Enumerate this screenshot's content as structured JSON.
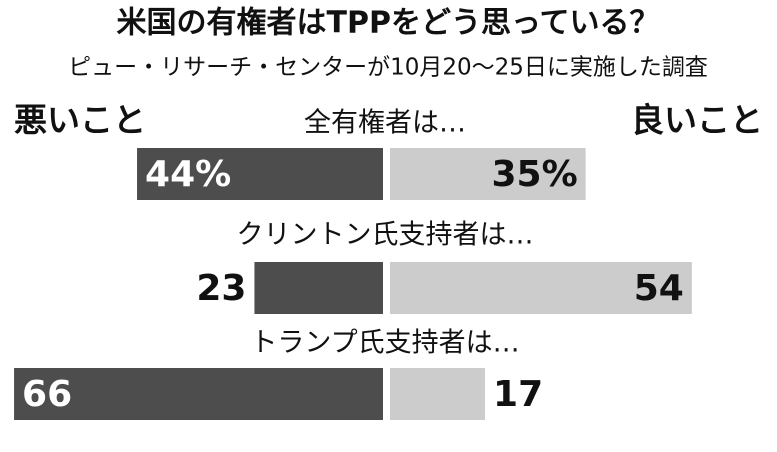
{
  "chart_data": {
    "type": "diverging-bar",
    "title": "米国の有権者はTPPをどう思っている？",
    "subtitle": "ピュー・リサーチ・センターが10月20〜25日に実施した調査",
    "categories": [
      "全有権者は…",
      "クリントン氏支持者は…",
      "トランプ氏支持者は…"
    ],
    "series": [
      {
        "name": "悪いこと",
        "color": "#4d4d4d",
        "values": [
          44,
          23,
          66
        ],
        "value_labels": [
          "44%",
          "23",
          "66"
        ]
      },
      {
        "name": "良いこと",
        "color": "#cccccc",
        "values": [
          35,
          54,
          17
        ],
        "value_labels": [
          "35%",
          "54",
          "17"
        ]
      }
    ]
  }
}
